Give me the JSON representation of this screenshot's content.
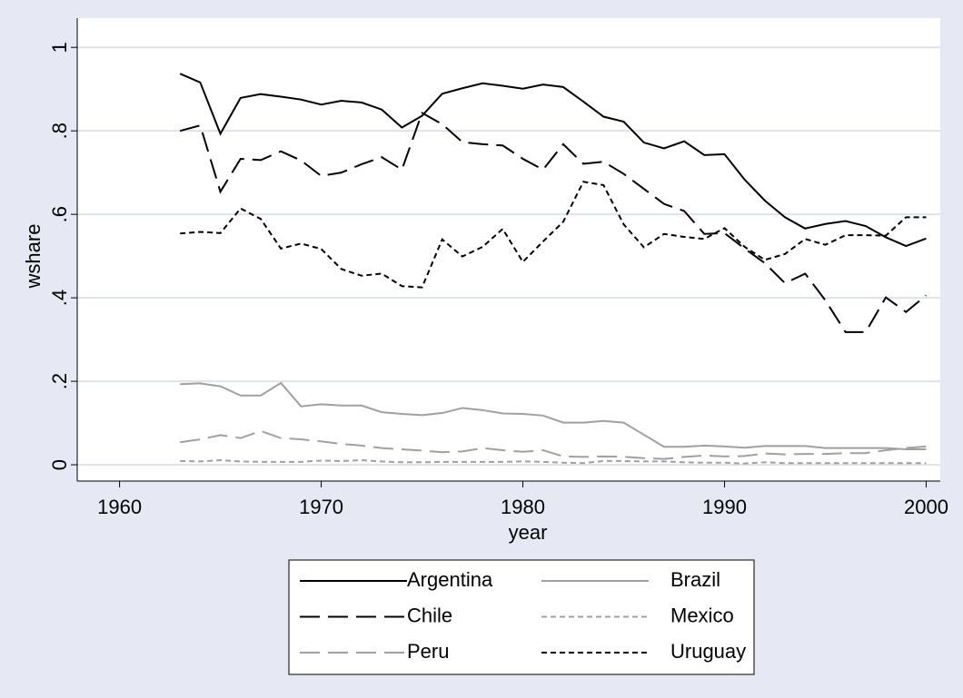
{
  "chart_data": {
    "type": "line",
    "x_label": "year",
    "y_label": "wshare",
    "x": [
      1963,
      1964,
      1965,
      1966,
      1967,
      1968,
      1969,
      1970,
      1971,
      1972,
      1973,
      1974,
      1975,
      1976,
      1977,
      1978,
      1979,
      1980,
      1981,
      1982,
      1983,
      1984,
      1985,
      1986,
      1987,
      1988,
      1989,
      1990,
      1991,
      1992,
      1993,
      1994,
      1995,
      1996,
      1997,
      1998,
      1999,
      2000
    ],
    "xlim": [
      1957.9,
      2000.7
    ],
    "xticks": [
      1960,
      1970,
      1980,
      1990,
      2000
    ],
    "ylim": [
      -0.039,
      1.07
    ],
    "yticks": [
      0,
      {
        "value": 0.2,
        "label": ".2"
      },
      {
        "value": 0.4,
        "label": ".4"
      },
      {
        "value": 0.6,
        "label": ".6"
      },
      {
        "value": 0.8,
        "label": ".8"
      },
      1
    ],
    "grid": true,
    "series": [
      {
        "name": "Argentina",
        "color": "#000000",
        "dash": "solid",
        "values": [
          0.937,
          0.916,
          0.793,
          0.879,
          0.888,
          0.882,
          0.875,
          0.863,
          0.872,
          0.868,
          0.851,
          0.808,
          0.836,
          0.889,
          0.902,
          0.914,
          0.908,
          0.901,
          0.911,
          0.905,
          0.87,
          0.834,
          0.822,
          0.772,
          0.758,
          0.775,
          0.742,
          0.744,
          0.683,
          0.633,
          0.593,
          0.566,
          0.577,
          0.584,
          0.572,
          0.545,
          0.524,
          0.542
        ]
      },
      {
        "name": "Brazil",
        "color": "#a0a0a0",
        "dash": "solid",
        "values": [
          0.193,
          0.195,
          0.188,
          0.166,
          0.166,
          0.196,
          0.14,
          0.145,
          0.142,
          0.142,
          0.126,
          0.122,
          0.119,
          0.124,
          0.136,
          0.131,
          0.123,
          0.122,
          0.118,
          0.101,
          0.101,
          0.105,
          0.101,
          0.072,
          0.043,
          0.043,
          0.046,
          0.044,
          0.041,
          0.045,
          0.045,
          0.045,
          0.04,
          0.04,
          0.04,
          0.04,
          0.037,
          0.037
        ]
      },
      {
        "name": "Chile",
        "color": "#000000",
        "dash": "long",
        "values": [
          0.8,
          0.813,
          0.654,
          0.733,
          0.73,
          0.751,
          0.729,
          0.692,
          0.7,
          0.72,
          0.737,
          0.707,
          0.843,
          0.816,
          0.773,
          0.768,
          0.765,
          0.733,
          0.707,
          0.768,
          0.721,
          0.726,
          0.697,
          0.661,
          0.625,
          0.608,
          0.553,
          0.555,
          0.518,
          0.483,
          0.435,
          0.458,
          0.394,
          0.318,
          0.318,
          0.401,
          0.366,
          0.406
        ]
      },
      {
        "name": "Mexico",
        "color": "#a0a0a0",
        "dash": "short",
        "values": [
          0.009,
          0.008,
          0.011,
          0.008,
          0.007,
          0.007,
          0.007,
          0.01,
          0.009,
          0.011,
          0.008,
          0.006,
          0.006,
          0.007,
          0.007,
          0.007,
          0.007,
          0.008,
          0.007,
          0.005,
          0.004,
          0.009,
          0.009,
          0.008,
          0.008,
          0.006,
          0.005,
          0.005,
          0.003,
          0.006,
          0.004,
          0.004,
          0.004,
          0.004,
          0.004,
          0.004,
          0.004,
          0.004
        ]
      },
      {
        "name": "Peru",
        "color": "#a0a0a0",
        "dash": "long",
        "values": [
          0.054,
          0.061,
          0.071,
          0.064,
          0.081,
          0.064,
          0.061,
          0.056,
          0.05,
          0.046,
          0.04,
          0.037,
          0.034,
          0.03,
          0.032,
          0.04,
          0.035,
          0.031,
          0.035,
          0.02,
          0.019,
          0.02,
          0.019,
          0.016,
          0.014,
          0.019,
          0.022,
          0.02,
          0.021,
          0.027,
          0.025,
          0.026,
          0.026,
          0.028,
          0.028,
          0.035,
          0.04,
          0.044
        ]
      },
      {
        "name": "Uruguay",
        "color": "#000000",
        "dash": "short",
        "values": [
          0.554,
          0.558,
          0.555,
          0.614,
          0.589,
          0.518,
          0.53,
          0.517,
          0.469,
          0.453,
          0.458,
          0.428,
          0.425,
          0.54,
          0.499,
          0.522,
          0.565,
          0.486,
          0.535,
          0.582,
          0.678,
          0.67,
          0.576,
          0.521,
          0.553,
          0.546,
          0.541,
          0.567,
          0.522,
          0.491,
          0.505,
          0.541,
          0.527,
          0.55,
          0.55,
          0.549,
          0.593,
          0.593
        ]
      }
    ]
  }
}
